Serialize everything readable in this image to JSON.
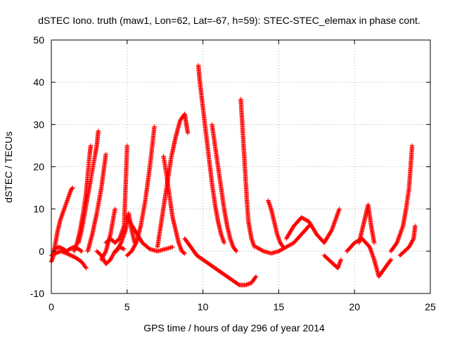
{
  "chart_data": {
    "type": "scatter",
    "title": "dSTEC Iono. truth (maw1, Lon=62, Lat=-67, h=59): STEC-STEC_elemax in phase cont.",
    "xlabel": "GPS time / hours of day 296 of year 2014",
    "ylabel": "dSTEC  / TECUs",
    "xlim": [
      0,
      25
    ],
    "ylim": [
      -10,
      50
    ],
    "xticks": [
      0,
      5,
      10,
      15,
      20,
      25
    ],
    "yticks": [
      -10,
      0,
      10,
      20,
      30,
      40,
      50
    ],
    "xtick_labels": [
      "0",
      "5",
      "10",
      "15",
      "20",
      "25"
    ],
    "ytick_labels": [
      "-10",
      "0",
      "10",
      "20",
      "30",
      "40",
      "50"
    ],
    "grid": true,
    "marker": "plus",
    "color": "#ff0000",
    "series": [
      {
        "segments": [
          {
            "x": [
              0.0,
              0.1,
              0.2,
              0.3,
              0.4,
              0.5,
              0.6,
              0.7,
              0.8,
              0.9,
              1.0,
              1.1,
              1.2,
              1.3,
              1.4
            ],
            "y": [
              -2.5,
              -1.5,
              0.5,
              2.5,
              4.5,
              6.0,
              7.5,
              8.5,
              9.5,
              10.5,
              11.5,
              12.5,
              13.5,
              14.5,
              15.0
            ]
          },
          {
            "x": [
              0.0,
              0.3,
              0.6,
              1.0,
              1.3,
              1.6,
              2.0,
              2.3
            ],
            "y": [
              -1.0,
              -0.5,
              0.0,
              -0.5,
              -1.0,
              -1.5,
              -2.5,
              -4.0
            ]
          },
          {
            "x": [
              0.2,
              0.5,
              0.8,
              1.0,
              1.2,
              1.5,
              1.8,
              2.0
            ],
            "y": [
              0.5,
              1.0,
              0.5,
              0.0,
              0.5,
              1.0,
              0.5,
              0.0
            ]
          },
          {
            "x": [
              1.5,
              1.7,
              1.9,
              2.1,
              2.3,
              2.4,
              2.5,
              2.6
            ],
            "y": [
              0.0,
              2.0,
              5.0,
              9.0,
              14.0,
              18.0,
              22.0,
              25.0
            ]
          },
          {
            "x": [
              1.8,
              2.0,
              2.2,
              2.4,
              2.6,
              2.8,
              3.0,
              3.1
            ],
            "y": [
              2.0,
              5.0,
              9.0,
              13.0,
              17.0,
              21.0,
              25.0,
              28.5
            ]
          },
          {
            "x": [
              2.4,
              2.7,
              3.0,
              3.3,
              3.6
            ],
            "y": [
              0.0,
              4.0,
              9.0,
              15.0,
              23.0
            ]
          },
          {
            "x": [
              3.3,
              3.6,
              3.9,
              4.2
            ],
            "y": [
              -2.0,
              0.0,
              4.0,
              10.0
            ]
          },
          {
            "x": [
              3.0,
              3.3,
              3.6,
              3.9,
              4.2,
              4.5,
              4.8
            ],
            "y": [
              0.0,
              -1.0,
              -3.0,
              -2.0,
              0.0,
              1.0,
              0.5
            ]
          },
          {
            "x": [
              3.6,
              3.9,
              4.2,
              4.5,
              4.8,
              5.0
            ],
            "y": [
              2.0,
              3.0,
              2.0,
              3.0,
              6.0,
              25.0
            ]
          },
          {
            "x": [
              4.3,
              4.6,
              4.9,
              5.1,
              5.3,
              5.5
            ],
            "y": [
              0.0,
              2.0,
              5.0,
              9.0,
              5.0,
              2.0
            ]
          },
          {
            "x": [
              5.0,
              5.3,
              5.6,
              5.9,
              6.2,
              6.5,
              6.8
            ],
            "y": [
              -1.0,
              0.0,
              2.0,
              6.0,
              12.0,
              20.0,
              29.5
            ]
          },
          {
            "x": [
              5.0,
              5.5,
              6.0,
              6.5,
              7.0,
              7.5,
              8.0
            ],
            "y": [
              8.0,
              5.0,
              2.0,
              0.5,
              0.0,
              0.5,
              1.0
            ]
          },
          {
            "x": [
              7.4,
              7.6,
              7.8,
              8.0,
              8.2,
              8.4,
              8.6,
              8.8
            ],
            "y": [
              22.5,
              18.0,
              13.0,
              8.0,
              5.0,
              2.0,
              0.0,
              -0.5
            ]
          },
          {
            "x": [
              7.0,
              7.3,
              7.6,
              7.9,
              8.2,
              8.5,
              8.8,
              9.0
            ],
            "y": [
              1.0,
              8.0,
              15.0,
              22.0,
              27.0,
              31.0,
              32.5,
              28.0
            ]
          },
          {
            "x": [
              8.8,
              9.2,
              9.6,
              10.0,
              10.4,
              10.8,
              11.2,
              11.6,
              12.0,
              12.4,
              12.8,
              13.2,
              13.5
            ],
            "y": [
              3.0,
              1.0,
              -1.0,
              -2.0,
              -3.0,
              -4.0,
              -5.0,
              -6.0,
              -7.0,
              -8.0,
              -8.0,
              -7.5,
              -6.0
            ]
          },
          {
            "x": [
              9.7,
              9.8,
              10.0,
              10.2,
              10.4,
              10.6,
              10.8,
              11.0,
              11.2,
              11.4
            ],
            "y": [
              44.0,
              40.0,
              34.0,
              28.0,
              22.0,
              16.0,
              11.0,
              7.0,
              4.0,
              2.0
            ]
          },
          {
            "x": [
              10.6,
              10.8,
              11.0,
              11.2,
              11.4,
              11.6,
              11.8,
              12.0,
              12.2
            ],
            "y": [
              30.0,
              25.0,
              20.0,
              15.0,
              10.0,
              6.0,
              3.0,
              1.0,
              0.0
            ]
          },
          {
            "x": [
              12.5,
              12.6,
              12.7,
              12.8,
              12.9,
              13.0,
              13.2,
              13.4
            ],
            "y": [
              36.0,
              30.0,
              24.0,
              18.0,
              12.0,
              7.0,
              3.0,
              1.0
            ]
          },
          {
            "x": [
              13.5,
              14.0,
              14.5,
              15.0,
              15.5,
              16.0,
              16.5,
              17.0
            ],
            "y": [
              1.0,
              0.0,
              -0.5,
              0.0,
              1.0,
              2.0,
              4.0,
              6.0
            ]
          },
          {
            "x": [
              14.3,
              14.5,
              14.7,
              14.9,
              15.1,
              15.3
            ],
            "y": [
              12.0,
              10.0,
              7.0,
              4.0,
              2.0,
              1.0
            ]
          },
          {
            "x": [
              15.5,
              16.0,
              16.5,
              17.0,
              17.5,
              18.0,
              18.5,
              19.0
            ],
            "y": [
              3.0,
              6.0,
              8.0,
              7.0,
              4.0,
              2.0,
              5.0,
              10.0
            ]
          },
          {
            "x": [
              18.0,
              18.3,
              18.6,
              18.9,
              19.1
            ],
            "y": [
              -1.0,
              -2.0,
              -3.0,
              -4.0,
              -2.0
            ]
          },
          {
            "x": [
              19.5,
              20.0,
              20.5,
              21.0,
              21.3,
              21.6,
              22.0,
              22.4
            ],
            "y": [
              0.0,
              2.0,
              3.0,
              1.0,
              -2.0,
              -6.0,
              -4.0,
              -2.0
            ]
          },
          {
            "x": [
              20.3,
              20.5,
              20.7,
              20.9,
              21.1,
              21.3
            ],
            "y": [
              2.0,
              5.0,
              8.0,
              11.0,
              6.0,
              2.0
            ]
          },
          {
            "x": [
              22.4,
              22.8,
              23.2,
              23.4,
              23.6,
              23.7,
              23.8
            ],
            "y": [
              0.0,
              2.0,
              6.0,
              10.0,
              15.0,
              20.0,
              25.0
            ]
          },
          {
            "x": [
              23.0,
              23.3,
              23.6,
              23.9,
              24.0
            ],
            "y": [
              -1.0,
              0.0,
              1.0,
              3.0,
              6.0
            ]
          }
        ]
      }
    ]
  }
}
